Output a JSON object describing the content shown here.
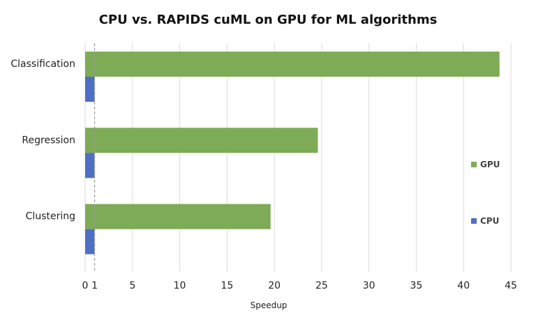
{
  "chart_data": {
    "type": "bar",
    "orientation": "horizontal",
    "title": "CPU vs. RAPIDS cuML on GPU for ML algorithms",
    "xlabel": "Speedup",
    "ylabel": "",
    "categories": [
      "Classification",
      "Regression",
      "Clustering"
    ],
    "series": [
      {
        "name": "GPU",
        "color": "#7eab55",
        "values": [
          43.8,
          24.6,
          19.6
        ]
      },
      {
        "name": "CPU",
        "color": "#4e6fc4",
        "values": [
          1,
          1,
          1
        ]
      }
    ],
    "xlim": [
      0,
      45
    ],
    "xticks": [
      "0",
      "1",
      "5",
      "10",
      "15",
      "20",
      "25",
      "30",
      "35",
      "40",
      "45"
    ],
    "reference_line": {
      "x": 1,
      "style": "dashed"
    },
    "grid": "vertical",
    "legend": {
      "placement": "right",
      "order": [
        "GPU",
        "CPU"
      ]
    }
  }
}
